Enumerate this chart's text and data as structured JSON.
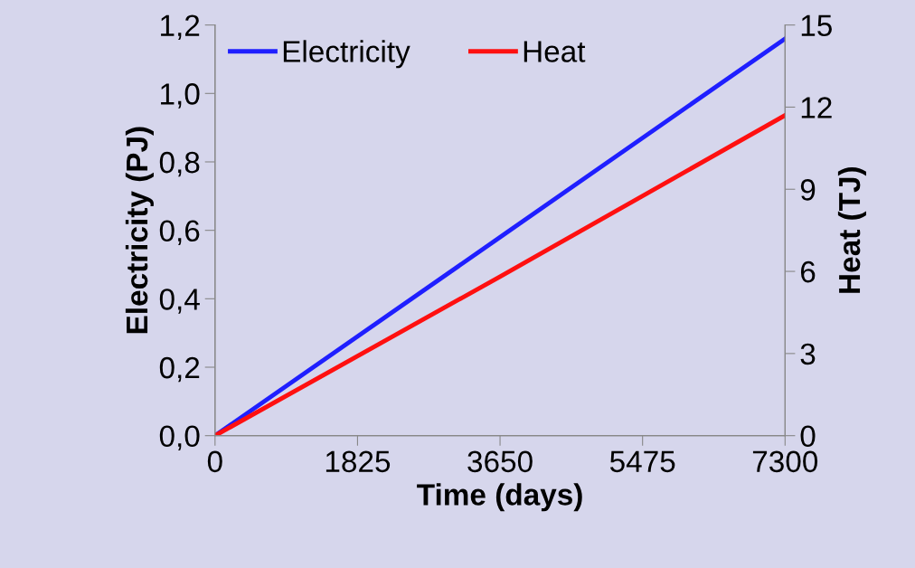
{
  "chart_data": {
    "type": "line",
    "xlabel": "Time (days)",
    "ylabel": "Electricity (PJ)",
    "y2label": "Heat (TJ)",
    "x": [
      0,
      3650,
      7300
    ],
    "series": [
      {
        "name": "Electricity",
        "color": "#1f1fff",
        "values": [
          0,
          0.58,
          1.16
        ]
      },
      {
        "name": "Heat",
        "color": "#ff1010",
        "values": [
          0,
          5.81,
          11.7
        ],
        "axis": "y2"
      }
    ],
    "xlim": [
      0,
      7300
    ],
    "xticks": [
      0,
      1825,
      3650,
      5475,
      7300
    ],
    "ylim": [
      0,
      1.2
    ],
    "yticks": [
      {
        "value": 0,
        "label": "0,0"
      },
      {
        "value": 0.2,
        "label": "0,2"
      },
      {
        "value": 0.4,
        "label": "0,4"
      },
      {
        "value": 0.6,
        "label": "0,6"
      },
      {
        "value": 0.8,
        "label": "0,8"
      },
      {
        "value": 1.0,
        "label": "1,0"
      },
      {
        "value": 1.2,
        "label": "1,2"
      }
    ],
    "y2lim": [
      0,
      15
    ],
    "y2ticks": [
      0,
      3,
      6,
      9,
      12,
      15
    ],
    "grid": false,
    "legend": "top left",
    "marker": "none",
    "line_style": "solid"
  }
}
